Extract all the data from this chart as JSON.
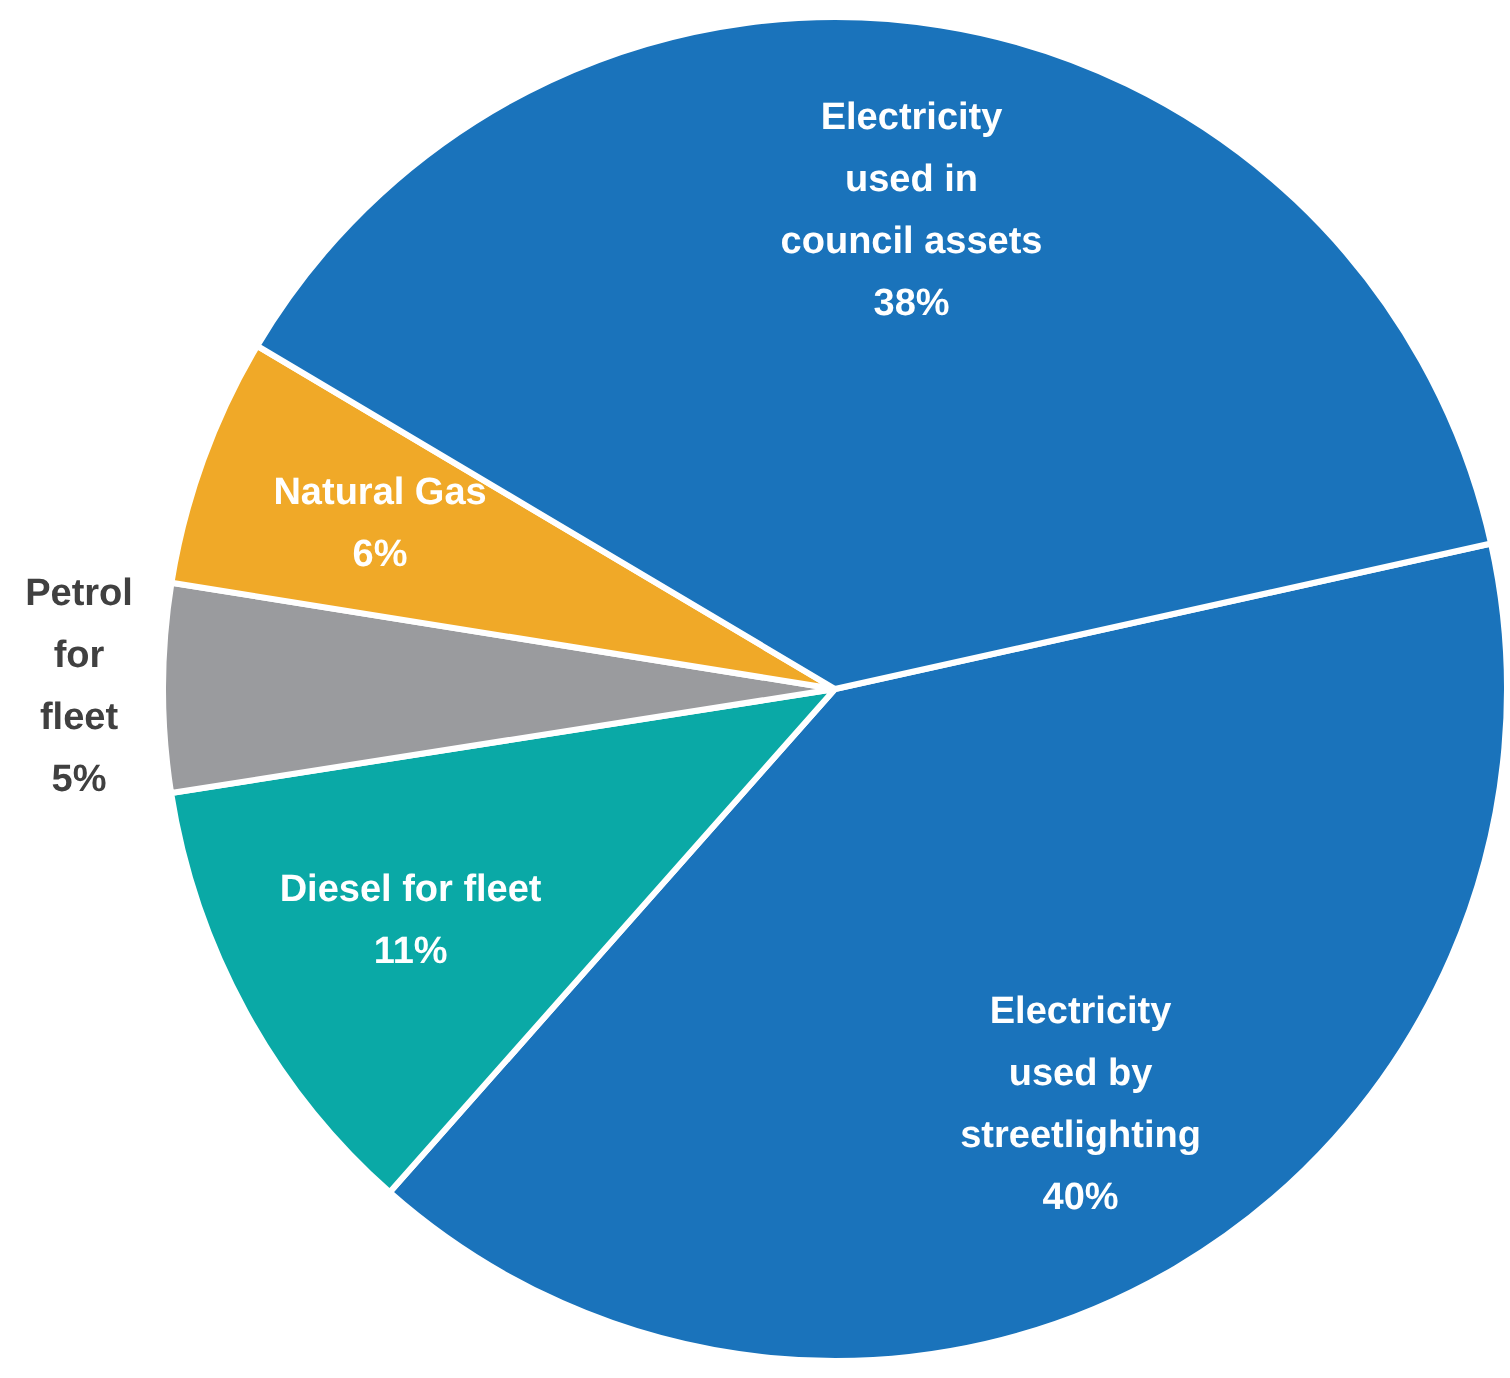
{
  "chart_data": {
    "type": "pie",
    "categories": [
      "Electricity used by streetlighting",
      "Diesel for fleet",
      "Petrol for fleet",
      "Natural Gas",
      "Electricity used in council assets"
    ],
    "values": [
      40,
      11,
      5,
      6,
      38
    ],
    "value_labels": [
      "40%",
      "11%",
      "5%",
      "6%",
      "38%"
    ],
    "colors": [
      "#1a73bb",
      "#0aa9a6",
      "#9a9b9e",
      "#f0a928",
      "#1a73bb"
    ],
    "legend": false
  }
}
